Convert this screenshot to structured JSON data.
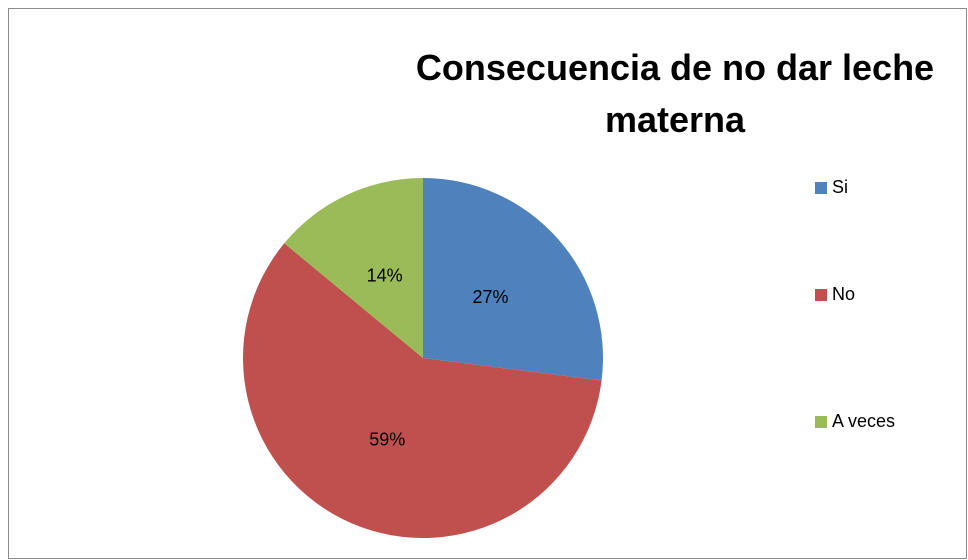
{
  "chart_data": {
    "type": "pie",
    "title": "Consecuencia de no dar leche materna",
    "categories": [
      "Si",
      "No",
      "A veces"
    ],
    "values": [
      27,
      59,
      14
    ],
    "value_labels": [
      "27%",
      "59%",
      "14%"
    ],
    "colors": [
      "#4f81bd",
      "#c0504d",
      "#9bbb59"
    ],
    "legend": "right"
  }
}
